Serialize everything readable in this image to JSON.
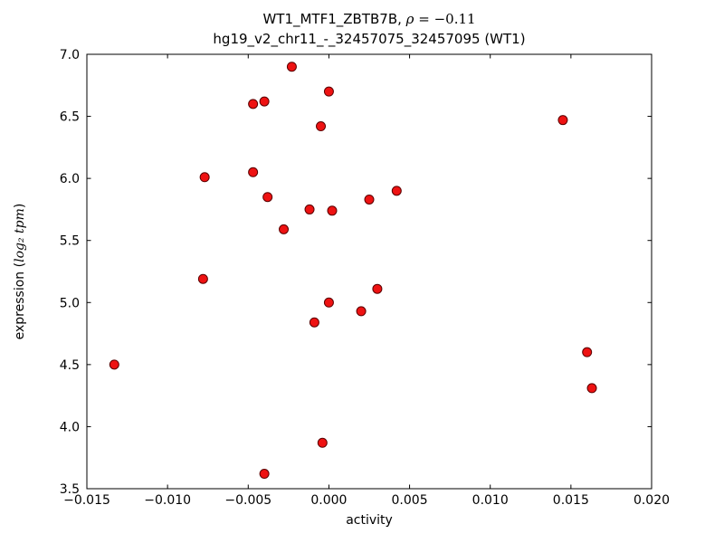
{
  "chart_data": {
    "type": "scatter",
    "title": {
      "line1_prefix": "WT1_MTF1_ZBTB7B, ",
      "line1_rho": "ρ",
      "line1_rest": " = −0.11",
      "line2": "hg19_v2_chr11_-_32457075_32457095 (WT1)"
    },
    "xlabel": "activity",
    "ylabel": {
      "prefix": "expression (",
      "math": "log₂ tpm",
      "suffix": ")"
    },
    "xlim": [
      -0.015,
      0.02
    ],
    "ylim": [
      3.5,
      7.0
    ],
    "xticks": [
      -0.015,
      -0.01,
      -0.005,
      0.0,
      0.005,
      0.01,
      0.015,
      0.02
    ],
    "xtick_labels": [
      "−0.015",
      "−0.010",
      "−0.005",
      "0.000",
      "0.005",
      "0.010",
      "0.015",
      "0.020"
    ],
    "yticks": [
      3.5,
      4.0,
      4.5,
      5.0,
      5.5,
      6.0,
      6.5,
      7.0
    ],
    "ytick_labels": [
      "3.5",
      "4.0",
      "4.5",
      "5.0",
      "5.5",
      "6.0",
      "6.5",
      "7.0"
    ],
    "grid": false,
    "legend": "none",
    "marker": {
      "shape": "circle",
      "fill": "#ee1212",
      "edge": "#5a0000",
      "radius": 5
    },
    "axis_color": "#000000",
    "points": [
      [
        -0.0133,
        4.5
      ],
      [
        -0.0078,
        5.19
      ],
      [
        -0.0077,
        6.01
      ],
      [
        -0.0047,
        6.05
      ],
      [
        -0.0047,
        6.6
      ],
      [
        -0.004,
        6.62
      ],
      [
        -0.0038,
        5.85
      ],
      [
        -0.004,
        3.62
      ],
      [
        -0.0028,
        5.59
      ],
      [
        -0.0023,
        6.9
      ],
      [
        -0.0012,
        5.75
      ],
      [
        -0.0009,
        4.84
      ],
      [
        -0.0005,
        6.42
      ],
      [
        -0.0004,
        3.87
      ],
      [
        0.0,
        5.0
      ],
      [
        0.0,
        6.7
      ],
      [
        0.0002,
        5.74
      ],
      [
        0.002,
        4.93
      ],
      [
        0.0025,
        5.83
      ],
      [
        0.003,
        5.11
      ],
      [
        0.0042,
        5.9
      ],
      [
        0.0145,
        6.47
      ],
      [
        0.016,
        4.6
      ],
      [
        0.0163,
        4.31
      ]
    ]
  }
}
